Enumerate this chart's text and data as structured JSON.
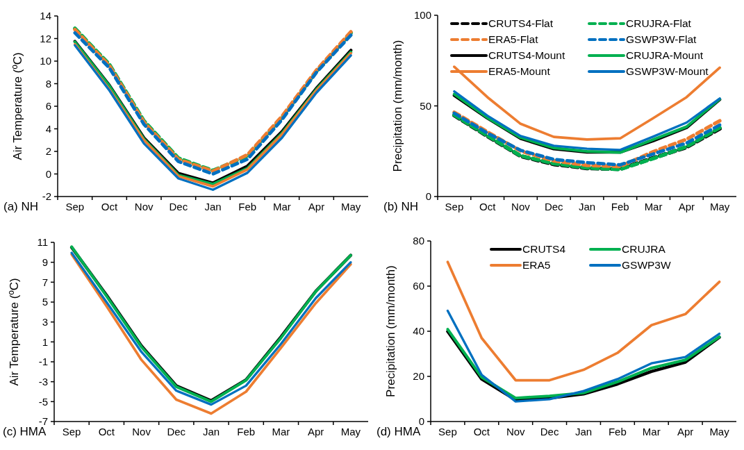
{
  "chart_data": [
    {
      "type": "line",
      "ylabel": "Air Temperature (ºC)",
      "annotations": [
        "(a) NH"
      ],
      "categories": [
        "Sep",
        "Oct",
        "Nov",
        "Dec",
        "Jan",
        "Feb",
        "Mar",
        "Apr",
        "May"
      ],
      "ylim": [
        -2,
        14
      ],
      "yticks": [
        -2,
        0,
        2,
        4,
        6,
        8,
        10,
        12,
        14
      ],
      "legend": false,
      "grid": false,
      "marker": "none",
      "series": [
        {
          "color": "#00b050",
          "line_style": "dashed",
          "values": [
            12.9,
            9.7,
            4.7,
            1.4,
            0.3,
            1.6,
            5.0,
            9.1,
            12.5
          ]
        },
        {
          "color": "#ed7d31",
          "line_style": "dashed",
          "values": [
            12.8,
            9.6,
            4.6,
            1.3,
            0.25,
            1.7,
            5.1,
            9.2,
            12.6
          ]
        },
        {
          "color": "#0070c0",
          "line_style": "dashed",
          "values": [
            12.5,
            9.4,
            4.4,
            1.1,
            0.0,
            1.3,
            4.8,
            9.0,
            12.3
          ]
        },
        {
          "color": "#000000",
          "line_style": "solid",
          "values": [
            11.75,
            7.85,
            3.2,
            0.05,
            -0.8,
            0.7,
            3.75,
            7.6,
            10.96
          ]
        },
        {
          "color": "#00b050",
          "line_style": "solid",
          "values": [
            11.7,
            7.8,
            3.1,
            -0.1,
            -0.9,
            0.5,
            3.6,
            7.5,
            10.8
          ]
        },
        {
          "color": "#ed7d31",
          "line_style": "solid",
          "values": [
            11.5,
            7.5,
            3.0,
            -0.2,
            -1.1,
            0.4,
            3.5,
            7.4,
            10.7
          ]
        },
        {
          "color": "#0070c0",
          "line_style": "solid",
          "values": [
            11.4,
            7.4,
            2.7,
            -0.4,
            -1.4,
            0.1,
            3.2,
            7.2,
            10.5
          ]
        }
      ]
    },
    {
      "type": "line",
      "ylabel": "Precipitation (mm/month)",
      "annotations": [
        "(b) NH"
      ],
      "categories": [
        "Sep",
        "Oct",
        "Nov",
        "Dec",
        "Jan",
        "Feb",
        "Mar",
        "Apr",
        "May"
      ],
      "ylim": [
        0,
        100
      ],
      "yticks": [
        0,
        50,
        100
      ],
      "legend": "top",
      "grid": false,
      "marker": "none",
      "series": [
        {
          "name": "CRUTS4-Flat",
          "color": "#000000",
          "line_style": "dashed",
          "values": [
            44.8,
            33.3,
            22.3,
            17.8,
            15.6,
            15.2,
            21.3,
            27.2,
            37.5
          ]
        },
        {
          "name": "CRUJRA-Flat",
          "color": "#00b050",
          "line_style": "dashed",
          "values": [
            45.0,
            33.5,
            22.5,
            18.2,
            15.8,
            15.0,
            21.0,
            27.5,
            38.0
          ]
        },
        {
          "name": "ERA5-Flat",
          "color": "#ed7d31",
          "line_style": "dashed",
          "values": [
            46.5,
            35.7,
            25.1,
            19.7,
            17.2,
            16.6,
            24.8,
            31.6,
            41.8
          ]
        },
        {
          "name": "GSWP3W-Flat",
          "color": "#0070c0",
          "line_style": "dashed",
          "values": [
            46.0,
            35.0,
            25.5,
            20.5,
            18.7,
            17.5,
            23.5,
            29.5,
            39.5
          ]
        },
        {
          "name": "CRUTS4-Mount",
          "color": "#000000",
          "line_style": "solid",
          "values": [
            55.8,
            43.2,
            32.0,
            26.3,
            24.5,
            24.5,
            30.8,
            38.0,
            53.5
          ]
        },
        {
          "name": "CRUJRA-Mount",
          "color": "#00b050",
          "line_style": "solid",
          "values": [
            56.5,
            43.5,
            32.5,
            26.8,
            24.9,
            24.3,
            31.5,
            38.5,
            53.8
          ]
        },
        {
          "name": "ERA5-Mount",
          "color": "#ed7d31",
          "line_style": "solid",
          "values": [
            71.6,
            54.8,
            40.1,
            32.9,
            31.5,
            32.1,
            43.3,
            54.8,
            71.1
          ]
        },
        {
          "name": "GSWP3W-Mount",
          "color": "#0070c0",
          "line_style": "solid",
          "values": [
            58.0,
            44.6,
            33.4,
            28.0,
            26.4,
            25.7,
            33.1,
            40.8,
            54.1
          ]
        }
      ]
    },
    {
      "type": "line",
      "ylabel": "Air Temperature (ºC)",
      "annotations": [
        "(c) HMA"
      ],
      "categories": [
        "Sep",
        "Oct",
        "Nov",
        "Dec",
        "Jan",
        "Feb",
        "Mar",
        "Apr",
        "May"
      ],
      "ylim": [
        -7,
        11
      ],
      "yticks": [
        -7,
        -5,
        -3,
        -1,
        1,
        3,
        5,
        7,
        9,
        11
      ],
      "legend": false,
      "grid": false,
      "marker": "none",
      "series": [
        {
          "color": "#000000",
          "line_style": "solid",
          "values": [
            10.5,
            5.7,
            0.6,
            -3.4,
            -4.9,
            -2.8,
            1.5,
            6.1,
            9.7
          ]
        },
        {
          "color": "#00b050",
          "line_style": "solid",
          "values": [
            10.56,
            5.6,
            0.5,
            -3.5,
            -5.0,
            -2.85,
            1.4,
            6.07,
            9.7
          ]
        },
        {
          "color": "#ed7d31",
          "line_style": "solid",
          "values": [
            9.8,
            4.6,
            -0.8,
            -4.8,
            -6.2,
            -4.0,
            0.4,
            4.9,
            8.8
          ]
        },
        {
          "color": "#0070c0",
          "line_style": "solid",
          "values": [
            9.95,
            5.0,
            0.0,
            -3.9,
            -5.3,
            -3.4,
            0.8,
            5.4,
            9.0
          ]
        }
      ]
    },
    {
      "type": "line",
      "ylabel": "Precipitation (mm/month)",
      "annotations": [
        "(d) HMA"
      ],
      "categories": [
        "Sep",
        "Oct",
        "Nov",
        "Dec",
        "Jan",
        "Feb",
        "Mar",
        "Apr",
        "May"
      ],
      "ylim": [
        0,
        80
      ],
      "yticks": [
        0,
        20,
        40,
        60,
        80
      ],
      "legend": "top",
      "grid": false,
      "marker": "none",
      "series": [
        {
          "name": "CRUTS4",
          "color": "#000000",
          "line_style": "solid",
          "values": [
            39.9,
            18.8,
            9.6,
            10.4,
            12.2,
            16.6,
            22.2,
            26.3,
            37.3
          ]
        },
        {
          "name": "CRUJRA",
          "color": "#00b050",
          "line_style": "solid",
          "values": [
            40.9,
            19.6,
            10.4,
            11.3,
            12.7,
            17.6,
            23.7,
            27.3,
            37.5
          ]
        },
        {
          "name": "ERA5",
          "color": "#ed7d31",
          "line_style": "solid",
          "values": [
            70.7,
            37.0,
            18.3,
            18.3,
            22.9,
            30.4,
            42.7,
            47.6,
            61.9
          ]
        },
        {
          "name": "GSWP3W",
          "color": "#0070c0",
          "line_style": "solid",
          "values": [
            49.1,
            20.7,
            8.9,
            9.9,
            13.5,
            18.8,
            25.8,
            28.6,
            38.9
          ]
        }
      ]
    }
  ]
}
